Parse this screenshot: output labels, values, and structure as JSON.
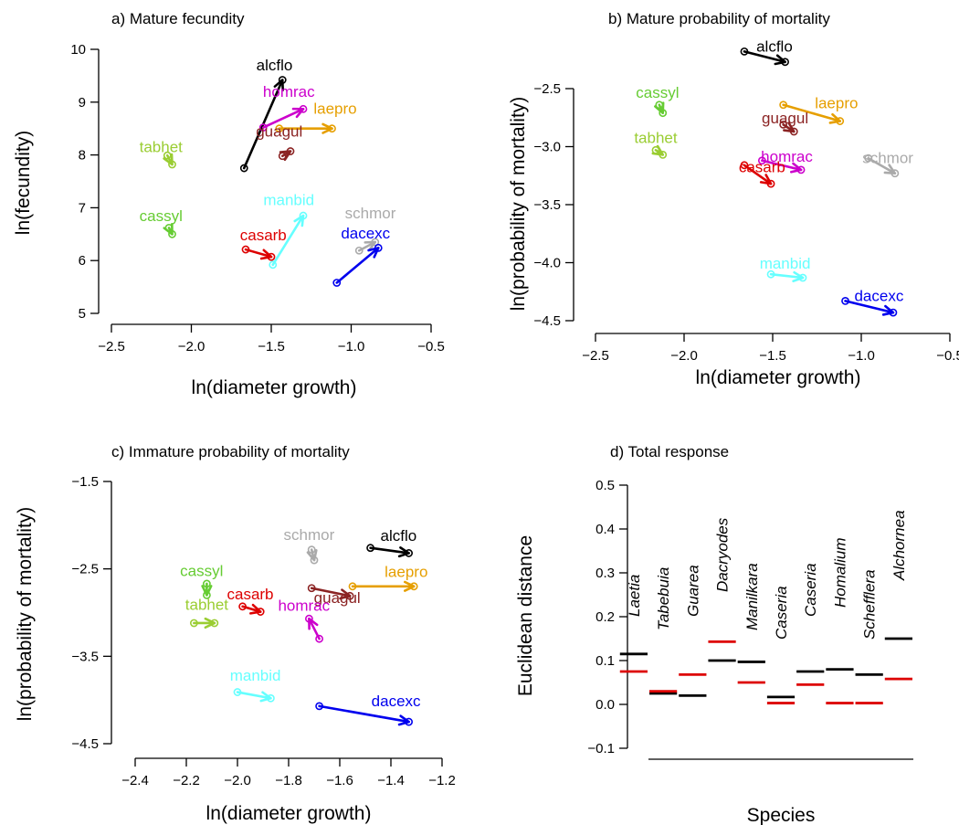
{
  "chart_data": [
    {
      "id": "a",
      "type": "scatter",
      "title": "a) Mature fecundity",
      "xlabel": "ln(diameter growth)",
      "ylabel": "ln(fecundity)",
      "xlim": [
        -2.5,
        -0.5
      ],
      "ylim": [
        5,
        10
      ],
      "xticks": [
        "−2.5",
        "−2.0",
        "−1.5",
        "−1.0",
        "−0.5"
      ],
      "xtick_values": [
        -2.5,
        -2.0,
        -1.5,
        -1.0,
        -0.5
      ],
      "yticks": [
        "5",
        "6",
        "7",
        "8",
        "9",
        "10"
      ],
      "ytick_values": [
        5,
        6,
        7,
        8,
        9,
        10
      ],
      "arrows": [
        {
          "label": "alcflo",
          "color": "#000000",
          "x0": -1.67,
          "y0": 7.75,
          "x1": -1.43,
          "y1": 9.42,
          "lx": -1.48,
          "ly": 9.6
        },
        {
          "label": "homrac",
          "color": "#cc00cc",
          "x0": -1.55,
          "y0": 8.52,
          "x1": -1.3,
          "y1": 8.87,
          "lx": -1.39,
          "ly": 9.1
        },
        {
          "label": "laepro",
          "color": "#e69f00",
          "x0": -1.45,
          "y0": 8.5,
          "x1": -1.12,
          "y1": 8.5,
          "lx": -1.1,
          "ly": 8.78
        },
        {
          "label": "guagul",
          "color": "#8b2323",
          "x0": -1.43,
          "y0": 7.98,
          "x1": -1.38,
          "y1": 8.07,
          "lx": -1.45,
          "ly": 8.35
        },
        {
          "label": "tabhet",
          "color": "#9acd32",
          "x0": -2.15,
          "y0": 7.99,
          "x1": -2.12,
          "y1": 7.82,
          "lx": -2.19,
          "ly": 8.05
        },
        {
          "label": "cassyl",
          "color": "#66cc33",
          "x0": -2.14,
          "y0": 6.62,
          "x1": -2.12,
          "y1": 6.5,
          "lx": -2.19,
          "ly": 6.75
        },
        {
          "label": "manbid",
          "color": "#66ffff",
          "x0": -1.49,
          "y0": 5.92,
          "x1": -1.3,
          "y1": 6.85,
          "lx": -1.39,
          "ly": 7.05
        },
        {
          "label": "casarb",
          "color": "#dd0000",
          "x0": -1.66,
          "y0": 6.21,
          "x1": -1.5,
          "y1": 6.07,
          "lx": -1.55,
          "ly": 6.38
        },
        {
          "label": "schmor",
          "color": "#aaaaaa",
          "x0": -0.95,
          "y0": 6.19,
          "x1": -0.85,
          "y1": 6.35,
          "lx": -0.88,
          "ly": 6.8
        },
        {
          "label": "dacexc",
          "color": "#0000ee",
          "x0": -1.09,
          "y0": 5.58,
          "x1": -0.83,
          "y1": 6.24,
          "lx": -0.91,
          "ly": 6.42
        }
      ]
    },
    {
      "id": "b",
      "type": "scatter",
      "title": "b) Mature probability of mortality",
      "xlabel": "ln(diameter growth)",
      "ylabel": "ln(probability of mortality)",
      "xlim": [
        -2.5,
        -0.5
      ],
      "ylim": [
        -4.5,
        -2.0
      ],
      "xticks": [
        "−2.5",
        "−2.0",
        "−1.5",
        "−1.0",
        "−0.5"
      ],
      "xtick_values": [
        -2.5,
        -2.0,
        -1.5,
        -1.0,
        -0.5
      ],
      "yticks": [
        "−4.5",
        "−4.0",
        "−3.5",
        "−3.0",
        "−2.5"
      ],
      "ytick_values": [
        -4.5,
        -4.0,
        -3.5,
        -3.0,
        -2.5
      ],
      "arrows": [
        {
          "label": "alcflo",
          "color": "#000000",
          "x0": -1.66,
          "y0": -2.18,
          "x1": -1.43,
          "y1": -2.27,
          "lx": -1.49,
          "ly": -2.18
        },
        {
          "label": "cassyl",
          "color": "#66cc33",
          "x0": -2.14,
          "y0": -2.64,
          "x1": -2.12,
          "y1": -2.71,
          "lx": -2.15,
          "ly": -2.58
        },
        {
          "label": "laepro",
          "color": "#e69f00",
          "x0": -1.44,
          "y0": -2.64,
          "x1": -1.12,
          "y1": -2.78,
          "lx": -1.14,
          "ly": -2.67
        },
        {
          "label": "guagul",
          "color": "#8b2323",
          "x0": -1.44,
          "y0": -2.81,
          "x1": -1.38,
          "y1": -2.87,
          "lx": -1.43,
          "ly": -2.8
        },
        {
          "label": "tabhet",
          "color": "#9acd32",
          "x0": -2.16,
          "y0": -3.03,
          "x1": -2.12,
          "y1": -3.07,
          "lx": -2.16,
          "ly": -2.97
        },
        {
          "label": "homrac",
          "color": "#cc00cc",
          "x0": -1.56,
          "y0": -3.12,
          "x1": -1.34,
          "y1": -3.2,
          "lx": -1.42,
          "ly": -3.13
        },
        {
          "label": "casarb",
          "color": "#dd0000",
          "x0": -1.66,
          "y0": -3.16,
          "x1": -1.51,
          "y1": -3.32,
          "lx": -1.56,
          "ly": -3.22
        },
        {
          "label": "schmor",
          "color": "#aaaaaa",
          "x0": -0.96,
          "y0": -3.1,
          "x1": -0.81,
          "y1": -3.23,
          "lx": -0.85,
          "ly": -3.14
        },
        {
          "label": "manbid",
          "color": "#66ffff",
          "x0": -1.51,
          "y0": -4.1,
          "x1": -1.33,
          "y1": -4.13,
          "lx": -1.43,
          "ly": -4.05
        },
        {
          "label": "dacexc",
          "color": "#0000ee",
          "x0": -1.09,
          "y0": -4.33,
          "x1": -0.82,
          "y1": -4.43,
          "lx": -0.9,
          "ly": -4.33
        }
      ]
    },
    {
      "id": "c",
      "type": "scatter",
      "title": "c) Immature probability of mortality",
      "xlabel": "ln(diameter growth)",
      "ylabel": "ln(probability of mortality)",
      "xlim": [
        -2.4,
        -1.2
      ],
      "ylim": [
        -4.5,
        -1.0
      ],
      "xticks": [
        "−2.4",
        "−2.2",
        "−2.0",
        "−1.8",
        "−1.6",
        "−1.4",
        "−1.2"
      ],
      "xtick_values": [
        -2.4,
        -2.2,
        -2.0,
        -1.8,
        -1.6,
        -1.4,
        -1.2
      ],
      "yticks": [
        "−4.5",
        "−3.5",
        "−2.5",
        "−1.5"
      ],
      "ytick_values": [
        -4.5,
        -3.5,
        -2.5,
        -1.5
      ],
      "arrows": [
        {
          "label": "alcflo",
          "color": "#000000",
          "x0": -1.48,
          "y0": -2.26,
          "x1": -1.33,
          "y1": -2.32,
          "lx": -1.37,
          "ly": -2.18
        },
        {
          "label": "schmor",
          "color": "#aaaaaa",
          "x0": -1.71,
          "y0": -2.28,
          "x1": -1.7,
          "y1": -2.4,
          "lx": -1.72,
          "ly": -2.17
        },
        {
          "label": "laepro",
          "color": "#e69f00",
          "x0": -1.55,
          "y0": -2.7,
          "x1": -1.31,
          "y1": -2.7,
          "lx": -1.34,
          "ly": -2.59
        },
        {
          "label": "guagul",
          "color": "#8b2323",
          "x0": -1.71,
          "y0": -2.72,
          "x1": -1.56,
          "y1": -2.81,
          "lx": -1.61,
          "ly": -2.89
        },
        {
          "label": "cassyl",
          "color": "#66cc33",
          "x0": -2.12,
          "y0": -2.67,
          "x1": -2.12,
          "y1": -2.8,
          "lx": -2.14,
          "ly": -2.58
        },
        {
          "label": "casarb",
          "color": "#dd0000",
          "x0": -1.98,
          "y0": -2.93,
          "x1": -1.91,
          "y1": -2.99,
          "lx": -1.95,
          "ly": -2.85
        },
        {
          "label": "tabhet",
          "color": "#9acd32",
          "x0": -2.17,
          "y0": -3.12,
          "x1": -2.09,
          "y1": -3.12,
          "lx": -2.12,
          "ly": -2.97
        },
        {
          "label": "homrac",
          "color": "#cc00cc",
          "x0": -1.68,
          "y0": -3.3,
          "x1": -1.72,
          "y1": -3.07,
          "lx": -1.74,
          "ly": -2.98
        },
        {
          "label": "manbid",
          "color": "#66ffff",
          "x0": -2.0,
          "y0": -3.91,
          "x1": -1.87,
          "y1": -3.98,
          "lx": -1.93,
          "ly": -3.78
        },
        {
          "label": "dacexc",
          "color": "#0000ee",
          "x0": -1.68,
          "y0": -4.07,
          "x1": -1.33,
          "y1": -4.25,
          "lx": -1.38,
          "ly": -4.07
        }
      ]
    },
    {
      "id": "d",
      "type": "bar",
      "title": "d) Total response",
      "xlabel": "Species",
      "ylabel": "Euclidean distance",
      "ylim": [
        -0.1,
        0.5
      ],
      "yticks": [
        "−0.1",
        "0.0",
        "0.1",
        "0.2",
        "0.3",
        "0.4",
        "0.5"
      ],
      "ytick_values": [
        -0.1,
        0.0,
        0.1,
        0.2,
        0.3,
        0.4,
        0.5
      ],
      "categories": [
        "Laetia",
        "Tabebuia",
        "Guarea",
        "Dacryodes",
        "Manilkara",
        "Caseria",
        "Caseria",
        "Homalium",
        "Schefflera",
        "Alchornea"
      ],
      "series": [
        {
          "color": "#000000",
          "values": [
            0.115,
            0.025,
            0.02,
            0.1,
            0.097,
            0.017,
            0.075,
            0.08,
            0.068,
            0.15
          ]
        },
        {
          "color": "#dd0000",
          "values": [
            0.075,
            0.03,
            0.068,
            0.143,
            0.05,
            0.003,
            0.045,
            0.003,
            0.003,
            0.058
          ]
        }
      ]
    }
  ]
}
